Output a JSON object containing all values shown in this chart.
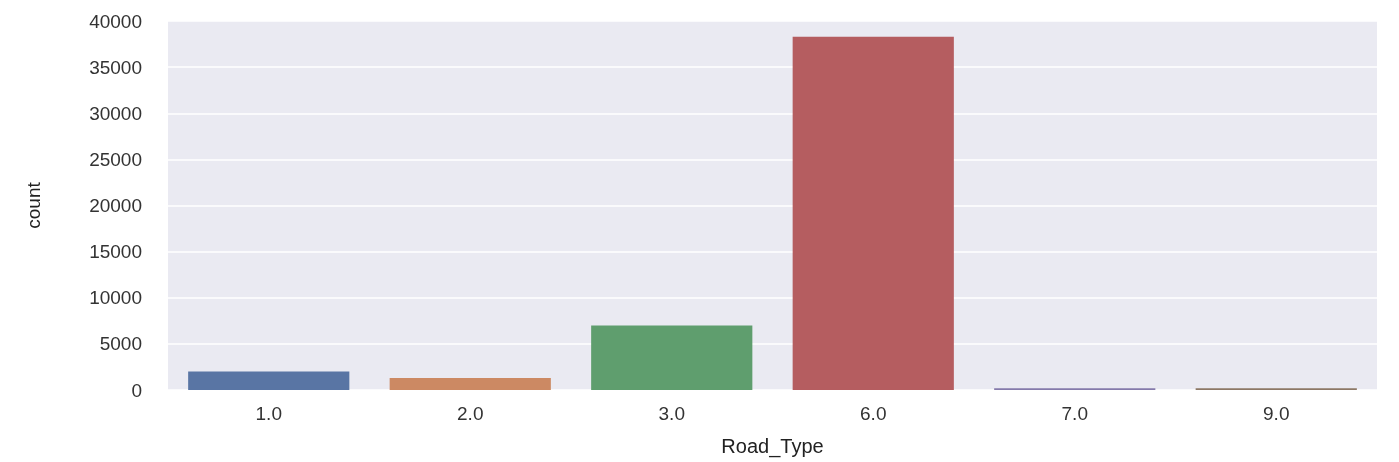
{
  "chart_data": {
    "type": "bar",
    "xlabel": "Road_Type",
    "ylabel": "count",
    "categories": [
      "1.0",
      "2.0",
      "3.0",
      "6.0",
      "7.0",
      "9.0"
    ],
    "values": [
      2000,
      1300,
      7000,
      38300,
      200,
      200
    ],
    "colors": [
      "#5975a4",
      "#cc8963",
      "#5f9e6e",
      "#b55d60",
      "#857aab",
      "#8d7866"
    ],
    "ylim": [
      0,
      40000
    ],
    "yticks": [
      0,
      5000,
      10000,
      15000,
      20000,
      25000,
      30000,
      35000,
      40000
    ],
    "grid": "y"
  }
}
